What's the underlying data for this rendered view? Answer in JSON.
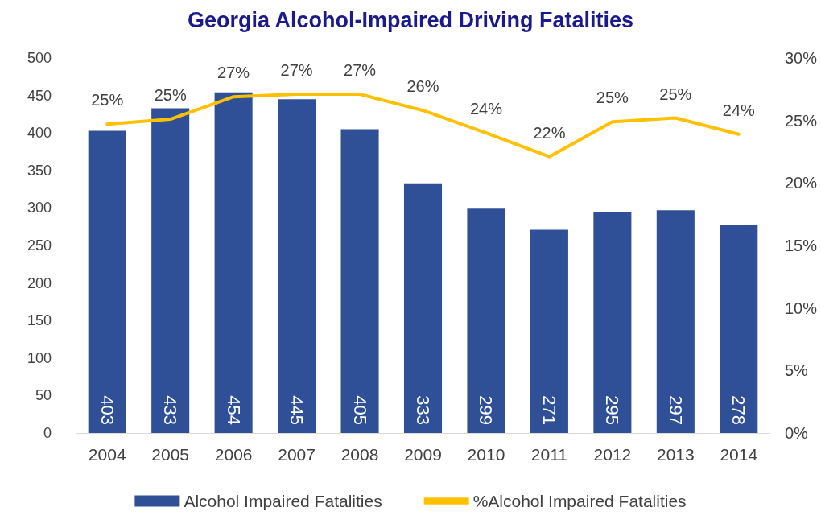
{
  "chart_data": {
    "type": "bar",
    "title": "Georgia Alcohol-Impaired Driving Fatalities",
    "categories": [
      "2004",
      "2005",
      "2006",
      "2007",
      "2008",
      "2009",
      "2010",
      "2011",
      "2012",
      "2013",
      "2014"
    ],
    "series": [
      {
        "name": "Alcohol Impaired Fatalities",
        "color": "#2f5097",
        "values": [
          403,
          433,
          454,
          445,
          405,
          333,
          299,
          271,
          295,
          297,
          278
        ],
        "value_labels": [
          "403",
          "433",
          "454",
          "445",
          "405",
          "333",
          "299",
          "271",
          "295",
          "297",
          "278"
        ]
      },
      {
        "name": "%Alcohol Impaired Fatalities",
        "type": "line",
        "axis": "y2",
        "color": "#ffc000",
        "values": [
          24.7,
          25.1,
          26.9,
          27.1,
          27.1,
          25.8,
          24.0,
          22.1,
          24.9,
          25.2,
          23.9
        ],
        "value_labels": [
          "25%",
          "25%",
          "27%",
          "27%",
          "27%",
          "26%",
          "24%",
          "22%",
          "25%",
          "25%",
          "24%"
        ]
      }
    ],
    "ylim": [
      0,
      500
    ],
    "yticks": [
      0,
      50,
      100,
      150,
      200,
      250,
      300,
      350,
      400,
      450,
      500
    ],
    "y2lim": [
      0,
      30
    ],
    "y2ticks": [
      {
        "value": 0,
        "label": "0%"
      },
      {
        "value": 5,
        "label": "5%"
      },
      {
        "value": 10,
        "label": "10%"
      },
      {
        "value": 15,
        "label": "15%"
      },
      {
        "value": 20,
        "label": "20%"
      },
      {
        "value": 25,
        "label": "25%"
      },
      {
        "value": 30,
        "label": "30%"
      }
    ],
    "legend": "bottom",
    "marker": "none",
    "line_style": "solid",
    "grid": false
  }
}
